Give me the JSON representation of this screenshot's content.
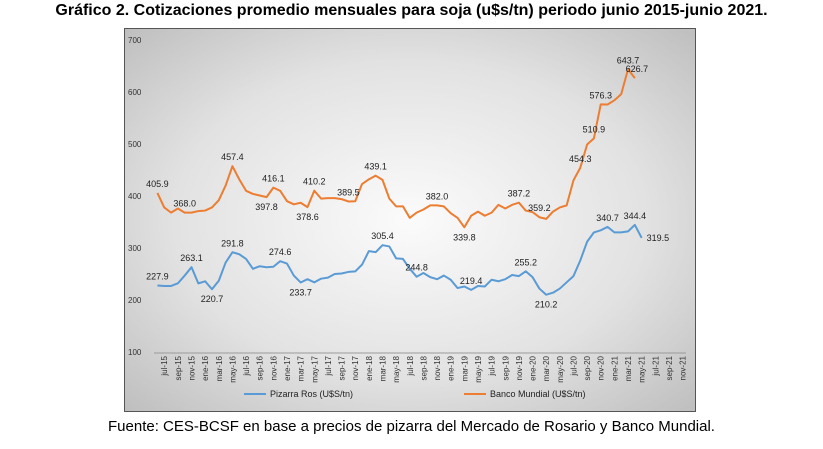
{
  "title": "Gráfico 2. Cotizaciones promedio mensuales para soja (u$s/tn) periodo junio 2015-junio 2021.",
  "source": "Fuente: CES-BCSF en base a precios de pizarra del Mercado de Rosario y Banco Mundial.",
  "colors": {
    "pizarra": "#5b9bd5",
    "banco": "#ed7d31"
  },
  "chart_data": {
    "type": "line",
    "title": "",
    "xlabel": "",
    "ylabel": "",
    "ylim": [
      100,
      700
    ],
    "yticks": [
      100,
      200,
      300,
      400,
      500,
      600,
      700
    ],
    "grid": false,
    "legend_position": "bottom",
    "x_tick_labels": [
      "jul-15",
      "sep-15",
      "nov-15",
      "ene-16",
      "mar-16",
      "may-16",
      "jul-16",
      "sep-16",
      "nov-16",
      "ene-17",
      "mar-17",
      "may-17",
      "jul-17",
      "sep-17",
      "nov-17",
      "ene-18",
      "mar-18",
      "may-18",
      "jul-18",
      "sep-18",
      "nov-18",
      "ene-19",
      "mar-19",
      "may-19",
      "jul-19",
      "sep-19",
      "nov-19",
      "ene-20",
      "mar-20",
      "may-20",
      "jul-20",
      "sep-20",
      "nov-20",
      "ene-21",
      "mar-21",
      "may-21",
      "jul-21",
      "sep-21",
      "nov-21"
    ],
    "x_tick_indices": [
      1,
      3,
      5,
      7,
      9,
      11,
      13,
      15,
      17,
      19,
      21,
      23,
      25,
      27,
      29,
      31,
      33,
      35,
      37,
      39,
      41,
      43,
      45,
      47,
      49,
      51,
      53,
      55,
      57,
      59,
      61,
      63,
      65,
      67,
      69,
      71,
      73,
      75,
      77
    ],
    "n_slots": 78,
    "series": [
      {
        "name": "Pizarra Ros (U$S/tn)",
        "values": [
          227.9,
          227,
          227,
          232,
          247,
          263.1,
          232,
          236,
          220.7,
          237,
          272,
          291.8,
          288,
          279,
          260,
          265,
          263,
          264,
          274.6,
          270,
          247,
          233.7,
          240,
          234,
          241,
          243,
          250,
          251,
          254,
          255,
          268,
          294,
          292,
          305.4,
          303,
          280,
          279,
          260,
          244.8,
          252,
          244,
          240,
          247,
          239,
          223,
          226,
          219.4,
          227,
          226,
          239,
          236,
          240,
          248,
          246,
          255.2,
          244,
          222,
          210.2,
          214,
          222,
          234,
          246,
          276,
          312,
          330,
          334,
          340.7,
          330,
          330,
          332,
          344.4,
          319.5
        ],
        "labels": [
          {
            "i": 0,
            "v": 227.9,
            "text": "227.9",
            "pos": "above"
          },
          {
            "i": 5,
            "v": 263.1,
            "text": "263.1",
            "pos": "above"
          },
          {
            "i": 8,
            "v": 220.7,
            "text": "220.7",
            "pos": "below"
          },
          {
            "i": 11,
            "v": 291.8,
            "text": "291.8",
            "pos": "above"
          },
          {
            "i": 18,
            "v": 274.6,
            "text": "274.6",
            "pos": "above"
          },
          {
            "i": 21,
            "v": 233.7,
            "text": "233.7",
            "pos": "below"
          },
          {
            "i": 33,
            "v": 305.4,
            "text": "305.4",
            "pos": "above"
          },
          {
            "i": 38,
            "v": 244.8,
            "text": "244.8",
            "pos": "above"
          },
          {
            "i": 46,
            "v": 219.4,
            "text": "219.4",
            "pos": "above"
          },
          {
            "i": 54,
            "v": 255.2,
            "text": "255.2",
            "pos": "above"
          },
          {
            "i": 57,
            "v": 210.2,
            "text": "210.2",
            "pos": "below"
          },
          {
            "i": 66,
            "v": 340.7,
            "text": "340.7",
            "pos": "above"
          },
          {
            "i": 70,
            "v": 344.4,
            "text": "344.4",
            "pos": "above"
          },
          {
            "i": 71,
            "v": 319.5,
            "text": "319.5",
            "pos": "right"
          }
        ]
      },
      {
        "name": "Banco Mundial (U$S/tn)",
        "values": [
          405.9,
          378,
          368,
          376,
          368,
          368,
          371,
          372,
          378,
          392,
          420,
          457.4,
          432,
          410,
          404,
          401,
          397.8,
          416.1,
          410,
          390,
          384,
          387,
          378.6,
          410.2,
          395,
          396,
          396,
          394,
          389.5,
          390,
          423,
          432,
          439.1,
          431,
          395,
          380,
          380,
          358,
          368,
          374,
          382,
          382,
          380,
          367,
          358,
          339.8,
          362,
          370,
          362,
          368,
          383,
          376,
          383,
          387.2,
          372,
          369,
          359.2,
          356,
          370,
          378,
          382,
          430,
          454.3,
          499,
          510.9,
          576.3,
          576,
          584,
          596,
          643.7,
          626.7
        ],
        "labels": [
          {
            "i": 0,
            "v": 405.9,
            "text": "405.9",
            "pos": "above"
          },
          {
            "i": 4,
            "v": 368,
            "text": "368.0",
            "pos": "above"
          },
          {
            "i": 11,
            "v": 457.4,
            "text": "457.4",
            "pos": "above"
          },
          {
            "i": 16,
            "v": 397.8,
            "text": "397.8",
            "pos": "below"
          },
          {
            "i": 17,
            "v": 416.1,
            "text": "416.1",
            "pos": "above"
          },
          {
            "i": 22,
            "v": 378.6,
            "text": "378.6",
            "pos": "below"
          },
          {
            "i": 23,
            "v": 410.2,
            "text": "410.2",
            "pos": "above"
          },
          {
            "i": 28,
            "v": 389.5,
            "text": "389.5",
            "pos": "above"
          },
          {
            "i": 32,
            "v": 439.1,
            "text": "439.1",
            "pos": "above"
          },
          {
            "i": 41,
            "v": 382,
            "text": "382.0",
            "pos": "above"
          },
          {
            "i": 45,
            "v": 339.8,
            "text": "339.8",
            "pos": "below"
          },
          {
            "i": 53,
            "v": 387.2,
            "text": "387.2",
            "pos": "above"
          },
          {
            "i": 56,
            "v": 359.2,
            "text": "359.2",
            "pos": "above"
          },
          {
            "i": 62,
            "v": 454.3,
            "text": "454.3",
            "pos": "above"
          },
          {
            "i": 64,
            "v": 510.9,
            "text": "510.9",
            "pos": "above"
          },
          {
            "i": 65,
            "v": 576.3,
            "text": "576.3",
            "pos": "above"
          },
          {
            "i": 69,
            "v": 643.7,
            "text": "643.7",
            "pos": "above"
          },
          {
            "i": 70,
            "v": 626.7,
            "text": "626.7",
            "pos": "aboveright"
          }
        ]
      }
    ]
  }
}
